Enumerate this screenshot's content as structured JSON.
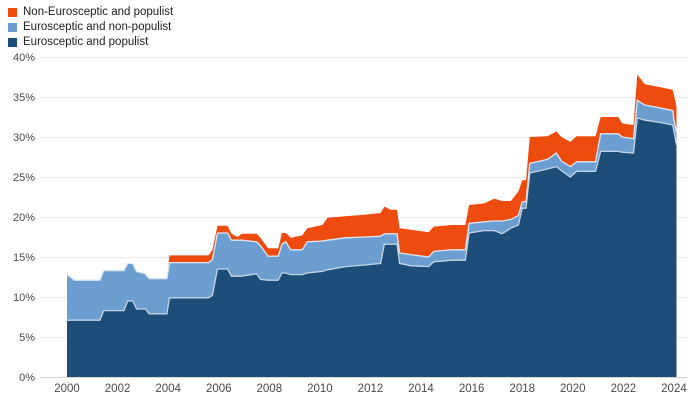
{
  "legend": {
    "items": [
      {
        "label": "Non-Eurosceptic and populist",
        "color": "#ee4b0f"
      },
      {
        "label": "Eurosceptic and non-populist",
        "color": "#6d9ed2"
      },
      {
        "label": "Eurosceptic and populist",
        "color": "#1d4e79"
      }
    ]
  },
  "chart_data": {
    "type": "area",
    "stacked": true,
    "title": "",
    "xlabel": "",
    "ylabel": "",
    "ylim": [
      0,
      40
    ],
    "xlim": [
      2000,
      2024.2
    ],
    "grid": true,
    "legend_position": "top-left",
    "x": [
      2000,
      2000.3,
      2001.3,
      2001.45,
      2002.25,
      2002.4,
      2002.6,
      2002.75,
      2003.1,
      2003.25,
      2003.95,
      2004.05,
      2005.6,
      2005.75,
      2005.95,
      2006.35,
      2006.5,
      2006.75,
      2006.9,
      2007.5,
      2007.65,
      2007.95,
      2008.35,
      2008.5,
      2008.65,
      2008.85,
      2009.3,
      2009.5,
      2010.1,
      2010.3,
      2011.0,
      2011.8,
      2012.4,
      2012.55,
      2012.8,
      2013.05,
      2013.15,
      2013.6,
      2014.3,
      2014.5,
      2015.2,
      2015.75,
      2015.9,
      2016.5,
      2016.9,
      2017.2,
      2017.55,
      2017.85,
      2018.0,
      2018.15,
      2018.3,
      2019.0,
      2019.35,
      2019.55,
      2019.9,
      2020.15,
      2020.9,
      2021.1,
      2021.8,
      2021.95,
      2022.4,
      2022.55,
      2022.85,
      2023.5,
      2023.95,
      2024.0,
      2024.1
    ],
    "series": [
      {
        "name": "Eurosceptic and populist",
        "color": "#1d4e79",
        "edge_color": "#c6d4e2",
        "values": [
          7.1,
          7.1,
          7.1,
          8.3,
          8.3,
          9.5,
          9.5,
          8.5,
          8.5,
          7.9,
          7.9,
          9.9,
          9.9,
          10.2,
          13.5,
          13.5,
          12.6,
          12.6,
          12.6,
          12.9,
          12.2,
          12.1,
          12.1,
          13.0,
          13.0,
          12.8,
          12.8,
          13.0,
          13.2,
          13.4,
          13.8,
          14.0,
          14.2,
          16.6,
          16.6,
          16.6,
          14.2,
          13.9,
          13.8,
          14.4,
          14.6,
          14.6,
          18.0,
          18.3,
          18.3,
          17.9,
          18.6,
          19.0,
          21.1,
          21.1,
          25.5,
          26.0,
          26.3,
          25.8,
          25.0,
          25.7,
          25.7,
          28.2,
          28.2,
          28.1,
          28.0,
          32.4,
          32.1,
          31.8,
          31.5,
          30.7,
          29.0
        ]
      },
      {
        "name": "Eurosceptic and non-populist",
        "color": "#6d9ed2",
        "edge_color": "#dce7f1",
        "values": [
          5.7,
          5.0,
          5.0,
          5.0,
          5.0,
          4.7,
          4.7,
          4.7,
          4.4,
          4.4,
          4.4,
          4.4,
          4.4,
          4.5,
          4.5,
          4.5,
          4.5,
          4.5,
          4.5,
          4.0,
          4.2,
          3.0,
          3.0,
          3.6,
          3.9,
          3.1,
          3.1,
          3.9,
          3.8,
          3.7,
          3.6,
          3.5,
          3.4,
          1.3,
          1.3,
          1.3,
          1.3,
          1.4,
          1.2,
          1.3,
          1.3,
          1.3,
          1.2,
          1.1,
          1.2,
          1.6,
          1.1,
          1.2,
          0.8,
          0.8,
          1.2,
          1.2,
          1.7,
          1.2,
          1.3,
          1.2,
          1.2,
          2.2,
          2.2,
          1.9,
          1.8,
          2.2,
          1.9,
          1.8,
          1.8,
          1.4,
          1.6
        ]
      },
      {
        "name": "Non-Eurosceptic and populist",
        "color": "#ee4b0f",
        "edge_color": "",
        "values": [
          0,
          0,
          0,
          0,
          0,
          0,
          0,
          0,
          0,
          0,
          0,
          0.9,
          0.9,
          1.2,
          0.9,
          0.9,
          0.8,
          0.4,
          0.8,
          1.0,
          1.0,
          1.0,
          1.0,
          1.4,
          1.1,
          1.5,
          1.8,
          1.7,
          2.0,
          2.8,
          2.7,
          2.8,
          2.9,
          3.4,
          3.0,
          3.0,
          3.1,
          3.1,
          3.1,
          3.1,
          3.1,
          3.1,
          2.3,
          2.3,
          2.8,
          2.5,
          2.3,
          3.0,
          2.7,
          2.7,
          3.3,
          2.9,
          2.7,
          3.0,
          3.1,
          3.2,
          3.2,
          2.1,
          2.1,
          1.7,
          1.7,
          3.2,
          2.6,
          2.6,
          2.6,
          3.2,
          3.2
        ]
      }
    ],
    "yticks": [
      {
        "v": 0,
        "label": "0%"
      },
      {
        "v": 5,
        "label": "5%"
      },
      {
        "v": 10,
        "label": "10%"
      },
      {
        "v": 15,
        "label": "15%"
      },
      {
        "v": 20,
        "label": "20%"
      },
      {
        "v": 25,
        "label": "25%"
      },
      {
        "v": 30,
        "label": "30%"
      },
      {
        "v": 35,
        "label": "35%"
      },
      {
        "v": 40,
        "label": "40%"
      }
    ],
    "xticks": [
      {
        "v": 2000,
        "label": "2000"
      },
      {
        "v": 2002,
        "label": "2002"
      },
      {
        "v": 2004,
        "label": "2004"
      },
      {
        "v": 2006,
        "label": "2006"
      },
      {
        "v": 2008,
        "label": "2008"
      },
      {
        "v": 2010,
        "label": "2010"
      },
      {
        "v": 2012,
        "label": "2012"
      },
      {
        "v": 2014,
        "label": "2014"
      },
      {
        "v": 2016,
        "label": "2016"
      },
      {
        "v": 2018,
        "label": "2018"
      },
      {
        "v": 2020,
        "label": "2020"
      },
      {
        "v": 2022,
        "label": "2022"
      },
      {
        "v": 2024,
        "label": "2024"
      }
    ],
    "grid_color": "#e9e9e9",
    "baseline_color": "#d5d5d5"
  }
}
